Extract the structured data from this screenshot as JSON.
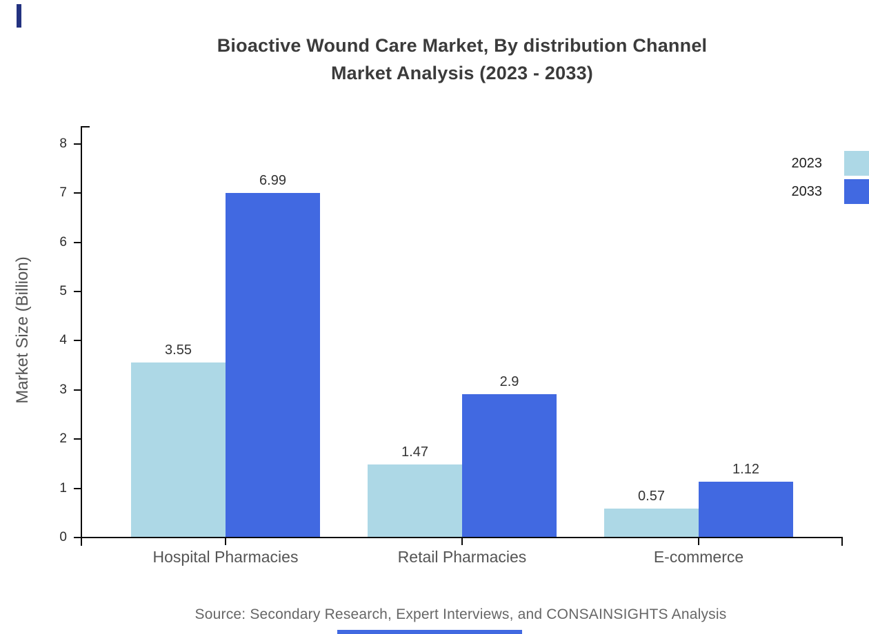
{
  "title": {
    "line1": "Bioactive Wound Care Market, By distribution Channel",
    "line2": "Market Analysis (2023 - 2033)"
  },
  "source": "Source: Secondary Research, Expert Interviews, and CONSAINSIGHTS Analysis",
  "accents": {
    "corner_bar_color": "#233280",
    "footer_bar_color": "#4169e1"
  },
  "chart_data": {
    "type": "bar",
    "title": "Bioactive Wound Care Market, By distribution Channel Market Analysis (2023 - 2033)",
    "categories": [
      "Hospital Pharmacies",
      "Retail Pharmacies",
      "E-commerce"
    ],
    "series": [
      {
        "name": "2023",
        "color": "#ADD8E6",
        "values": [
          3.55,
          1.47,
          0.57
        ]
      },
      {
        "name": "2033",
        "color": "#4169E1",
        "values": [
          6.99,
          2.9,
          1.12
        ]
      }
    ],
    "value_labels": [
      [
        "3.55",
        "1.47",
        "0.57"
      ],
      [
        "6.99",
        "2.9",
        "1.12"
      ]
    ],
    "xlabel": "",
    "ylabel": "Market Size (Billion)",
    "ylim": [
      0,
      8
    ],
    "ytick_step": 1,
    "yticks": [
      "0",
      "1",
      "2",
      "3",
      "4",
      "5",
      "6",
      "7",
      "8"
    ],
    "grid": false,
    "legend_position": "upper-right",
    "axis_color": "#0a0a0a",
    "tick_label_color": "#2b2b2b",
    "category_label_color": "#555555",
    "value_label_color": "#333333"
  }
}
